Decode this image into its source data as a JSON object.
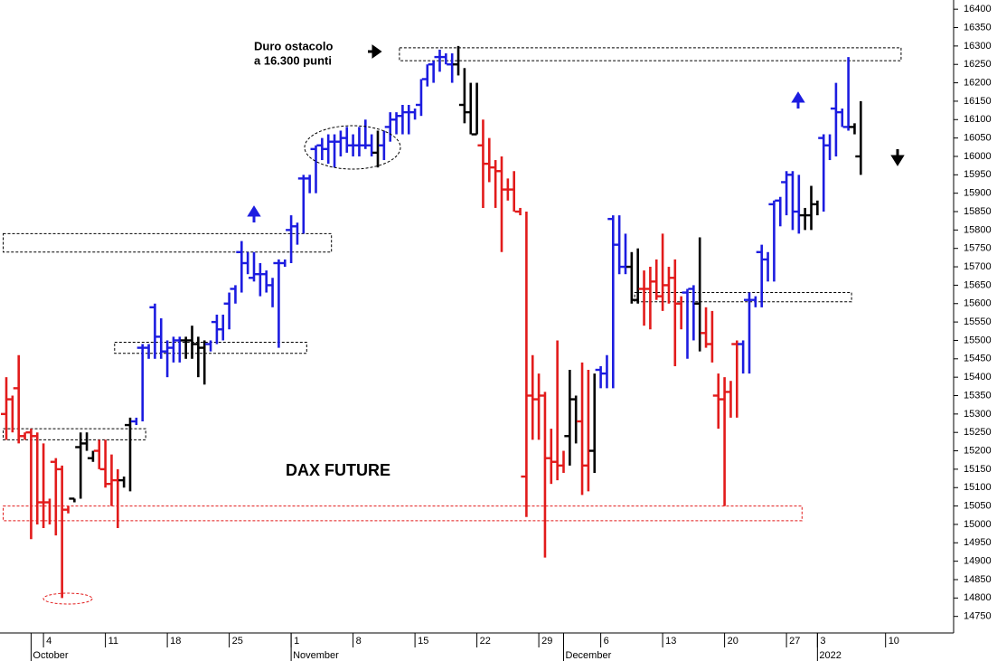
{
  "chart_data": {
    "type": "hlc",
    "annotations": {
      "note": [
        "Duro ostacolo",
        "a 16.300 punti"
      ],
      "label": "DAX FUTURE"
    },
    "ylim": [
      14705,
      16425
    ],
    "yticks": [
      14750,
      14800,
      14850,
      14900,
      14950,
      15000,
      15050,
      15100,
      15150,
      15200,
      15250,
      15300,
      15350,
      15400,
      15450,
      15500,
      15550,
      15600,
      15650,
      15700,
      15750,
      15800,
      15850,
      15900,
      15950,
      16000,
      16050,
      16100,
      16150,
      16200,
      16250,
      16300,
      16350,
      16400
    ],
    "categories": [
      null,
      null,
      null,
      null,
      null,
      null,
      "4",
      null,
      null,
      null,
      null,
      null,
      null,
      null,
      null,
      null,
      "11",
      null,
      null,
      null,
      null,
      null,
      null,
      null,
      null,
      null,
      "18",
      null,
      null,
      null,
      null,
      null,
      null,
      null,
      null,
      null,
      "25",
      null,
      null,
      null,
      null,
      null,
      null,
      null,
      null,
      null,
      "1",
      null,
      null,
      null,
      null,
      null,
      null,
      null,
      null,
      null,
      "8",
      null,
      null,
      null,
      null,
      null,
      null,
      null,
      null,
      null,
      "15",
      null,
      null,
      null,
      null,
      null,
      null,
      null,
      null,
      null,
      "22",
      null,
      null,
      null,
      null,
      null,
      null,
      null,
      null,
      null,
      "29",
      null,
      null,
      null,
      null,
      null,
      null,
      null,
      null,
      null,
      "6",
      null,
      null,
      null,
      null,
      null,
      null,
      null,
      null,
      null,
      "13",
      null,
      null,
      null,
      null,
      null,
      null,
      null,
      null,
      null,
      "20",
      null,
      null,
      null,
      null,
      null,
      null,
      null,
      null,
      null,
      "27",
      null,
      null,
      null,
      null,
      "3",
      null,
      null,
      null,
      null,
      null,
      null,
      null,
      null,
      null,
      null,
      "10",
      null,
      null,
      null,
      null,
      null,
      null,
      null,
      null
    ],
    "month_labels": [
      null,
      null,
      null,
      null,
      "October",
      null,
      null,
      null,
      null,
      null,
      null,
      null,
      null,
      null,
      null,
      null,
      null,
      null,
      null,
      null,
      null,
      null,
      null,
      null,
      null,
      null,
      null,
      null,
      null,
      null,
      null,
      null,
      null,
      null,
      null,
      null,
      null,
      null,
      null,
      null,
      null,
      null,
      null,
      null,
      null,
      null,
      "November",
      null,
      null,
      null,
      null,
      null,
      null,
      null,
      null,
      null,
      null,
      null,
      null,
      null,
      null,
      null,
      null,
      null,
      null,
      null,
      null,
      null,
      null,
      null,
      null,
      null,
      null,
      null,
      null,
      null,
      null,
      null,
      null,
      null,
      null,
      null,
      null,
      null,
      null,
      null,
      null,
      null,
      null,
      null,
      "December",
      null,
      null,
      null,
      null,
      null,
      null,
      null,
      null,
      null,
      null,
      null,
      null,
      null,
      null,
      null,
      null,
      null,
      null,
      null,
      null,
      null,
      null,
      null,
      null,
      null,
      null,
      null,
      null,
      null,
      null,
      null,
      null,
      null,
      null,
      null,
      null,
      null,
      null,
      null,
      null,
      "2022",
      null,
      null,
      null,
      null,
      null,
      null,
      null,
      null,
      null,
      null,
      null,
      null,
      null,
      null,
      null,
      null,
      null,
      null,
      null
    ],
    "high": [
      15400,
      15350,
      15460,
      15250,
      15260,
      15250,
      15220,
      15070,
      15180,
      15160,
      15050,
      15070,
      15250,
      15250,
      15200,
      15230,
      15230,
      15190,
      15150,
      15130,
      15290,
      15290,
      15490,
      15490,
      15600,
      15560,
      15500,
      15510,
      15510,
      15510,
      15540,
      15510,
      15500,
      15500,
      15570,
      15570,
      15630,
      15650,
      15770,
      15740,
      15740,
      15710,
      15690,
      15670,
      15720,
      15720,
      15840,
      15820,
      15950,
      15950,
      16030,
      16050,
      16060,
      16060,
      16070,
      16080,
      16060,
      16080,
      16100,
      16060,
      16070,
      16070,
      16120,
      16120,
      16140,
      16140,
      16130,
      16210,
      16250,
      16260,
      16290,
      16280,
      16280,
      16300,
      16240,
      16200,
      16200,
      16100,
      16050,
      15990,
      16000,
      15940,
      15960,
      15860,
      15850,
      15460,
      15410,
      15360,
      15260,
      15500,
      15200,
      15420,
      15350,
      15440,
      15420,
      15410,
      15430,
      15460,
      15840,
      15840,
      15790,
      15740,
      15750,
      15690,
      15700,
      15720,
      15790,
      15700,
      15720,
      15620,
      15640,
      15650,
      15780,
      15590,
      15580,
      15410,
      15400,
      15390,
      15500,
      15500,
      15630,
      15620,
      15760,
      15740,
      15880,
      15890,
      15960,
      15960,
      15950,
      15860,
      15920,
      15880,
      16060,
      16060,
      16200,
      16130,
      16270,
      16090,
      16150,
      null,
      null,
      null,
      null,
      null,
      null,
      null,
      null,
      null,
      null,
      null,
      null
    ],
    "low": [
      15230,
      15250,
      15220,
      15230,
      14960,
      15000,
      14990,
      15000,
      14970,
      14800,
      15030,
      15060,
      15070,
      15200,
      15170,
      15150,
      15100,
      15050,
      14990,
      15100,
      15090,
      15270,
      15280,
      15450,
      15450,
      15450,
      15400,
      15440,
      15440,
      15450,
      15450,
      15400,
      15380,
      15470,
      15490,
      15500,
      15530,
      15600,
      15630,
      15680,
      15660,
      15620,
      15630,
      15590,
      15480,
      15700,
      15710,
      15760,
      15790,
      15900,
      15900,
      15990,
      15980,
      15970,
      16000,
      16010,
      16000,
      16000,
      16020,
      16000,
      15970,
      15990,
      16040,
      16060,
      16060,
      16060,
      16100,
      16110,
      16190,
      16200,
      16230,
      16250,
      16200,
      16220,
      16090,
      16060,
      16060,
      15860,
      15930,
      15860,
      15740,
      15880,
      15850,
      15840,
      15020,
      15230,
      15230,
      14910,
      15110,
      15120,
      15140,
      15160,
      15220,
      15080,
      15090,
      15140,
      15370,
      15370,
      15370,
      15680,
      15680,
      15600,
      15600,
      15540,
      15530,
      15610,
      15580,
      15600,
      15430,
      15530,
      15450,
      15500,
      15470,
      15480,
      15440,
      15260,
      15050,
      15290,
      15290,
      15410,
      15410,
      15590,
      15590,
      15660,
      15660,
      15810,
      15840,
      15800,
      15790,
      15800,
      15800,
      15840,
      15850,
      15990,
      16000,
      16080,
      16070,
      16060,
      15950,
      null,
      null,
      null,
      null,
      null,
      null,
      null,
      null,
      null,
      null,
      null,
      null
    ],
    "close": [
      15300,
      15340,
      15370,
      15240,
      15250,
      15240,
      15060,
      15060,
      15170,
      15150,
      15040,
      15070,
      15210,
      15220,
      15180,
      15200,
      15150,
      15110,
      15120,
      15120,
      15270,
      15280,
      15480,
      15480,
      15590,
      15510,
      15470,
      15480,
      15500,
      15500,
      15500,
      15490,
      15480,
      15490,
      15550,
      15530,
      15600,
      15640,
      15740,
      15710,
      15670,
      15680,
      15680,
      15650,
      15710,
      15710,
      15800,
      15810,
      15940,
      15940,
      16020,
      16030,
      16020,
      16040,
      16040,
      16050,
      16030,
      16030,
      16030,
      16030,
      16010,
      16030,
      16080,
      16100,
      16110,
      16120,
      16120,
      16140,
      16210,
      16250,
      16270,
      16270,
      16250,
      16250,
      16140,
      16120,
      16060,
      16030,
      15980,
      15970,
      15960,
      15910,
      15910,
      15850,
      15130,
      15350,
      15340,
      15350,
      15180,
      15170,
      15160,
      15240,
      15340,
      15280,
      15160,
      15200,
      15420,
      15410,
      15830,
      15760,
      15700,
      15700,
      15610,
      15640,
      15640,
      15660,
      15620,
      15650,
      15670,
      15600,
      15630,
      15640,
      15600,
      15520,
      15490,
      15350,
      15340,
      15360,
      15490,
      15490,
      15610,
      15610,
      15740,
      15720,
      15870,
      15880,
      15930,
      15950,
      15850,
      15840,
      15840,
      15870,
      16050,
      16030,
      16130,
      16120,
      16080,
      16080,
      16000,
      null,
      null,
      null,
      null,
      null,
      null,
      null,
      null,
      null,
      null,
      null,
      null
    ],
    "bar_colors": [
      "#e21b1b",
      "#e21b1b",
      "#e21b1b",
      "#e21b1b",
      "#e21b1b",
      "#e21b1b",
      "#e21b1b",
      "#e21b1b",
      "#e21b1b",
      "#e21b1b",
      "#e21b1b",
      "#000000",
      "#000000",
      "#000000",
      "#000000",
      "#e21b1b",
      "#e21b1b",
      "#e21b1b",
      "#e21b1b",
      "#000000",
      "#000000",
      "#1c1ce0",
      "#1c1ce0",
      "#1c1ce0",
      "#1c1ce0",
      "#1c1ce0",
      "#1c1ce0",
      "#1c1ce0",
      "#1c1ce0",
      "#000000",
      "#000000",
      "#000000",
      "#000000",
      "#1c1ce0",
      "#1c1ce0",
      "#1c1ce0",
      "#1c1ce0",
      "#1c1ce0",
      "#1c1ce0",
      "#1c1ce0",
      "#1c1ce0",
      "#1c1ce0",
      "#1c1ce0",
      "#1c1ce0",
      "#1c1ce0",
      "#1c1ce0",
      "#1c1ce0",
      "#1c1ce0",
      "#1c1ce0",
      "#1c1ce0",
      "#1c1ce0",
      "#1c1ce0",
      "#1c1ce0",
      "#1c1ce0",
      "#1c1ce0",
      "#1c1ce0",
      "#1c1ce0",
      "#1c1ce0",
      "#1c1ce0",
      "#1c1ce0",
      "#000000",
      "#1c1ce0",
      "#1c1ce0",
      "#1c1ce0",
      "#1c1ce0",
      "#1c1ce0",
      "#1c1ce0",
      "#1c1ce0",
      "#1c1ce0",
      "#1c1ce0",
      "#1c1ce0",
      "#1c1ce0",
      "#1c1ce0",
      "#000000",
      "#000000",
      "#000000",
      "#000000",
      "#e21b1b",
      "#e21b1b",
      "#e21b1b",
      "#e21b1b",
      "#e21b1b",
      "#e21b1b",
      "#e21b1b",
      "#e21b1b",
      "#e21b1b",
      "#e21b1b",
      "#e21b1b",
      "#e21b1b",
      "#e21b1b",
      "#e21b1b",
      "#000000",
      "#000000",
      "#e21b1b",
      "#e21b1b",
      "#000000",
      "#1c1ce0",
      "#1c1ce0",
      "#1c1ce0",
      "#1c1ce0",
      "#1c1ce0",
      "#000000",
      "#000000",
      "#e21b1b",
      "#e21b1b",
      "#e21b1b",
      "#e21b1b",
      "#e21b1b",
      "#e21b1b",
      "#e21b1b",
      "#1c1ce0",
      "#1c1ce0",
      "#000000",
      "#e21b1b",
      "#e21b1b",
      "#e21b1b",
      "#e21b1b",
      "#e21b1b",
      "#e21b1b",
      "#1c1ce0",
      "#1c1ce0",
      "#1c1ce0",
      "#1c1ce0",
      "#1c1ce0",
      "#1c1ce0",
      "#1c1ce0",
      "#1c1ce0",
      "#1c1ce0",
      "#1c1ce0",
      "#000000",
      "#000000",
      "#000000",
      "#1c1ce0",
      "#1c1ce0",
      "#1c1ce0",
      "#1c1ce0",
      "#1c1ce0",
      "#000000",
      "#000000",
      null,
      null,
      null,
      null,
      null,
      null,
      null,
      null,
      null,
      null,
      null,
      null
    ],
    "zones": [
      {
        "ylo": 16260,
        "yhi": 16295,
        "from": 64,
        "to": 144,
        "color": "#000000"
      },
      {
        "ylo": 15740,
        "yhi": 15790,
        "from": 0,
        "to": 52,
        "color": "#000000"
      },
      {
        "ylo": 15465,
        "yhi": 15495,
        "from": 18,
        "to": 48,
        "color": "#000000"
      },
      {
        "ylo": 15230,
        "yhi": 15260,
        "from": 0,
        "to": 22,
        "color": "#000000"
      },
      {
        "ylo": 15010,
        "yhi": 15050,
        "from": 0,
        "to": 128,
        "color": "#e21b1b"
      },
      {
        "ylo": 15605,
        "yhi": 15630,
        "from": 102,
        "to": 136,
        "color": "#000000"
      }
    ]
  }
}
